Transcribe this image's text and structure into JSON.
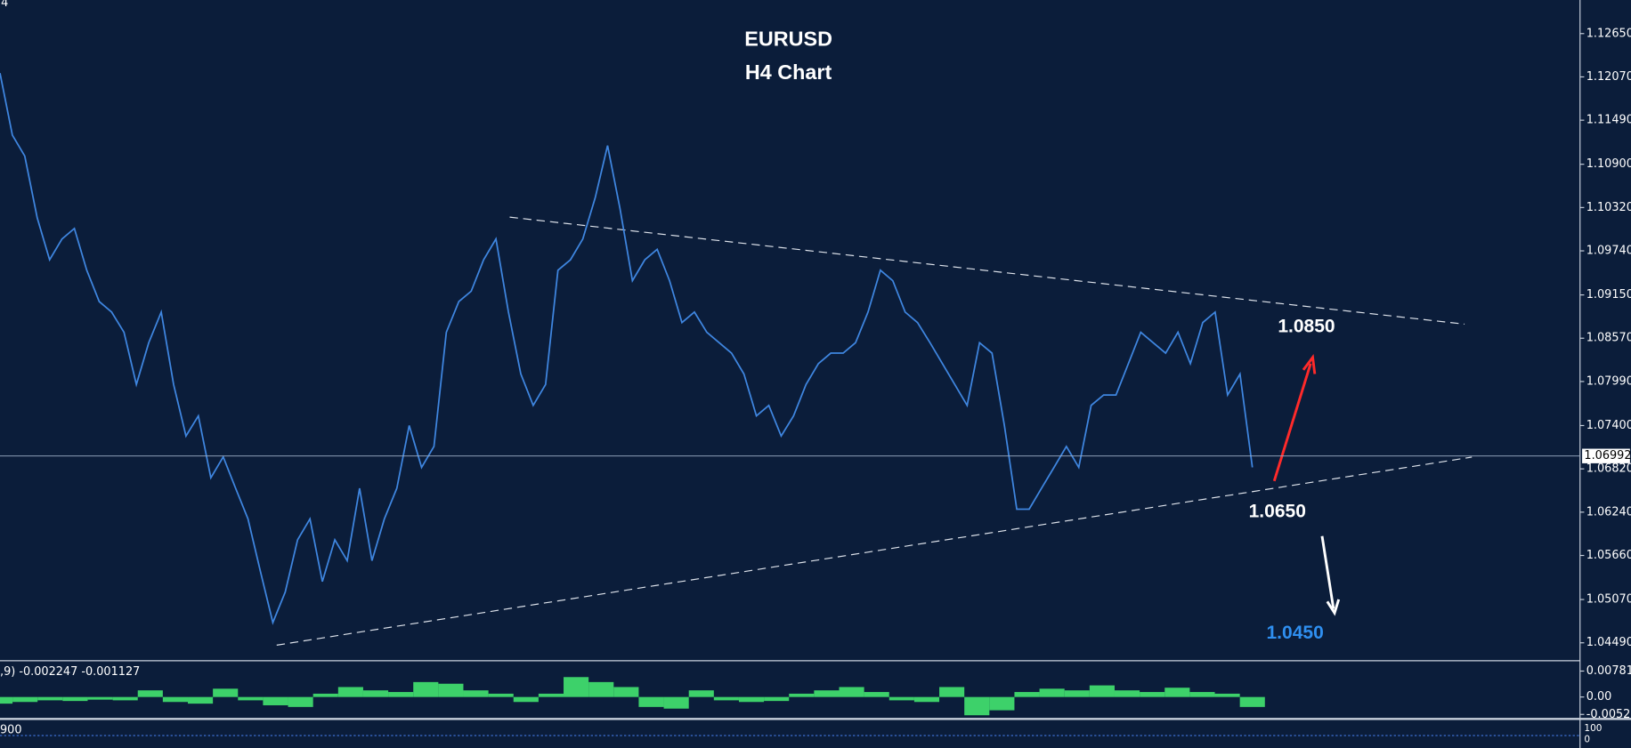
{
  "corner_label": "4",
  "chart_data": [
    {
      "type": "line",
      "title": "EURUSD",
      "subtitle": "H4 Chart",
      "color": "#3f86e0",
      "values": [
        1.1212,
        1.1129,
        1.1101,
        1.1018,
        1.0962,
        1.099,
        1.1004,
        1.0948,
        1.0906,
        1.0892,
        1.0865,
        1.0795,
        1.0851,
        1.0892,
        1.0795,
        1.0726,
        1.0753,
        1.067,
        1.0698,
        1.0656,
        1.0615,
        1.0545,
        1.0476,
        1.0517,
        1.0587,
        1.0615,
        1.0531,
        1.0587,
        1.0559,
        1.0656,
        1.0559,
        1.0615,
        1.0656,
        1.074,
        1.0684,
        1.0712,
        1.0865,
        1.0906,
        1.092,
        1.0962,
        1.099,
        1.0892,
        1.0809,
        1.0767,
        1.0795,
        1.0948,
        1.0962,
        1.099,
        1.1045,
        1.1115,
        1.1031,
        1.0934,
        1.0962,
        1.0976,
        1.0934,
        1.0878,
        1.0892,
        1.0865,
        1.0851,
        1.0837,
        1.0809,
        1.0753,
        1.0767,
        1.0726,
        1.0753,
        1.0795,
        1.0823,
        1.0837,
        1.0837,
        1.0851,
        1.0892,
        1.0948,
        1.0934,
        1.0892,
        1.0878,
        1.0851,
        1.0823,
        1.0795,
        1.0767,
        1.0851,
        1.0837,
        1.074,
        1.0628,
        1.0628,
        1.0656,
        1.0684,
        1.0712,
        1.0684,
        1.0767,
        1.0781,
        1.0781,
        1.0823,
        1.0865,
        1.0851,
        1.0837,
        1.0865,
        1.0823,
        1.0878,
        1.0892,
        1.0781,
        1.0809,
        1.0684
      ],
      "ylim": [
        1.0425,
        1.131
      ],
      "yticks": [
        {
          "value": 1.1265,
          "label": "1.12650"
        },
        {
          "value": 1.1207,
          "label": "1.12070"
        },
        {
          "value": 1.1149,
          "label": "1.11490"
        },
        {
          "value": 1.109,
          "label": "1.10900"
        },
        {
          "value": 1.1032,
          "label": "1.10320"
        },
        {
          "value": 1.0974,
          "label": "1.09740"
        },
        {
          "value": 1.0915,
          "label": "1.09150"
        },
        {
          "value": 1.0857,
          "label": "1.08570"
        },
        {
          "value": 1.0799,
          "label": "1.07990"
        },
        {
          "value": 1.074,
          "label": "1.07400"
        },
        {
          "value": 1.0682,
          "label": "1.06820"
        },
        {
          "value": 1.0624,
          "label": "1.06240"
        },
        {
          "value": 1.0566,
          "label": "1.05660"
        },
        {
          "value": 1.0507,
          "label": "1.05070"
        },
        {
          "value": 1.0449,
          "label": "1.04490"
        }
      ],
      "last_price": 1.06992,
      "annotations": [
        {
          "text": "1.0850",
          "color": "#ffffff"
        },
        {
          "text": "1.0650",
          "color": "#ffffff"
        },
        {
          "text": "1.0450",
          "color": "#2f8ff0"
        }
      ]
    },
    {
      "type": "bar",
      "title": ",9) -0.002247 -0.001127",
      "color": "#3dd16a",
      "values": [
        -0.002,
        -0.0015,
        -0.001,
        -0.0012,
        -0.0008,
        -0.001,
        0.002,
        -0.0015,
        -0.002,
        0.0025,
        -0.001,
        -0.0025,
        -0.003,
        0.001,
        0.003,
        0.002,
        0.0015,
        0.0045,
        0.004,
        0.002,
        0.001,
        -0.0015,
        0.001,
        0.006,
        0.0045,
        0.003,
        -0.003,
        -0.0035,
        0.002,
        -0.001,
        -0.0015,
        -0.0012,
        0.001,
        0.002,
        0.003,
        0.0015,
        -0.001,
        -0.0015,
        0.003,
        -0.0055,
        -0.004,
        0.0015,
        0.0025,
        0.002,
        0.0035,
        0.002,
        0.0015,
        0.0028,
        0.0015,
        0.001,
        -0.003
      ],
      "ylim": [
        -0.0066,
        0.0103
      ],
      "yticks": [
        0.007812,
        {
          "value": 0,
          "label": "0.00"
        },
        -0.00525
      ]
    }
  ],
  "indicator2": {
    "label": "900",
    "axis_labels": [
      "100",
      "0"
    ]
  }
}
